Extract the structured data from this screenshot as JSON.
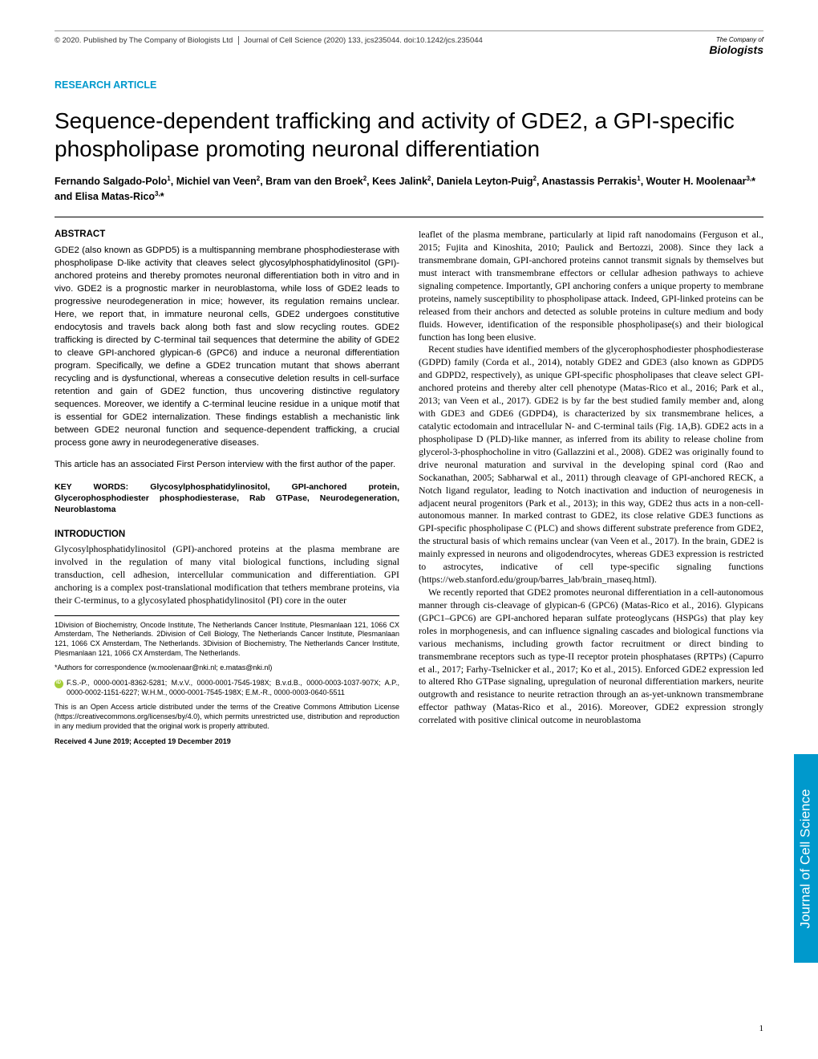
{
  "header": {
    "copyright": "© 2020. Published by The Company of Biologists Ltd",
    "journal": "Journal of Cell Science (2020) 133, jcs235044. doi:10.1242/jcs.235044",
    "logo_prefix": "The Company of",
    "logo_main": "Biologists"
  },
  "article_type": "RESEARCH ARTICLE",
  "title": "Sequence-dependent trafficking and activity of GDE2, a GPI-specific phospholipase promoting neuronal differentiation",
  "authors_html": "Fernando Salgado-Polo<sup>1</sup>, Michiel van Veen<sup>2</sup>, Bram van den Broek<sup>2</sup>, Kees Jalink<sup>2</sup>, Daniela Leyton-Puig<sup>2</sup>, Anastassis Perrakis<sup>1</sup>, Wouter H. Moolenaar<sup>3,</sup>* and Elisa Matas-Rico<sup>3,</sup>*",
  "abstract_head": "ABSTRACT",
  "abstract_text": "GDE2 (also known as GDPD5) is a multispanning membrane phosphodiesterase with phospholipase D-like activity that cleaves select glycosylphosphatidylinositol (GPI)-anchored proteins and thereby promotes neuronal differentiation both in vitro and in vivo. GDE2 is a prognostic marker in neuroblastoma, while loss of GDE2 leads to progressive neurodegeneration in mice; however, its regulation remains unclear. Here, we report that, in immature neuronal cells, GDE2 undergoes constitutive endocytosis and travels back along both fast and slow recycling routes. GDE2 trafficking is directed by C-terminal tail sequences that determine the ability of GDE2 to cleave GPI-anchored glypican-6 (GPC6) and induce a neuronal differentiation program. Specifically, we define a GDE2 truncation mutant that shows aberrant recycling and is dysfunctional, whereas a consecutive deletion results in cell-surface retention and gain of GDE2 function, thus uncovering distinctive regulatory sequences. Moreover, we identify a C-terminal leucine residue in a unique motif that is essential for GDE2 internalization. These findings establish a mechanistic link between GDE2 neuronal function and sequence-dependent trafficking, a crucial process gone awry in neurodegenerative diseases.",
  "first_person": "This article has an associated First Person interview with the first author of the paper.",
  "keywords": "KEY WORDS: Glycosylphosphatidylinositol, GPI-anchored protein, Glycerophosphodiester phosphodiesterase, Rab GTPase, Neurodegeneration, Neuroblastoma",
  "intro_head": "INTRODUCTION",
  "intro_p1": "Glycosylphosphatidylinositol (GPI)-anchored proteins at the plasma membrane are involved in the regulation of many vital biological functions, including signal transduction, cell adhesion, intercellular communication and differentiation. GPI anchoring is a complex post-translational modification that tethers membrane proteins, via their C-terminus, to a glycosylated phosphatidylinositol (PI) core in the outer",
  "affil": {
    "a1": "1Division of Biochemistry, Oncode Institute, The Netherlands Cancer Institute, Plesmanlaan 121, 1066 CX Amsterdam, The Netherlands. 2Division of Cell Biology, The Netherlands Cancer Institute, Plesmanlaan 121, 1066 CX Amsterdam, The Netherlands. 3Division of Biochemistry, The Netherlands Cancer Institute, Plesmanlaan 121, 1066 CX Amsterdam, The Netherlands.",
    "corr": "*Authors for correspondence (w.moolenaar@nki.nl; e.matas@nki.nl)",
    "orcid": "F.S.-P., 0000-0001-8362-5281; M.v.V., 0000-0001-7545-198X; B.v.d.B., 0000-0003-1037-907X; A.P., 0000-0002-1151-6227; W.H.M., 0000-0001-7545-198X; E.M.-R., 0000-0003-0640-5511",
    "license": "This is an Open Access article distributed under the terms of the Creative Commons Attribution License (https://creativecommons.org/licenses/by/4.0), which permits unrestricted use, distribution and reproduction in any medium provided that the original work is properly attributed.",
    "received": "Received 4 June 2019; Accepted 19 December 2019"
  },
  "col2_p1": "leaflet of the plasma membrane, particularly at lipid raft nanodomains (Ferguson et al., 2015; Fujita and Kinoshita, 2010; Paulick and Bertozzi, 2008). Since they lack a transmembrane domain, GPI-anchored proteins cannot transmit signals by themselves but must interact with transmembrane effectors or cellular adhesion pathways to achieve signaling competence. Importantly, GPI anchoring confers a unique property to membrane proteins, namely susceptibility to phospholipase attack. Indeed, GPI-linked proteins can be released from their anchors and detected as soluble proteins in culture medium and body fluids. However, identification of the responsible phospholipase(s) and their biological function has long been elusive.",
  "col2_p2": "Recent studies have identified members of the glycerophosphodiester phosphodiesterase (GDPD) family (Corda et al., 2014), notably GDE2 and GDE3 (also known as GDPD5 and GDPD2, respectively), as unique GPI-specific phospholipases that cleave select GPI-anchored proteins and thereby alter cell phenotype (Matas-Rico et al., 2016; Park et al., 2013; van Veen et al., 2017). GDE2 is by far the best studied family member and, along with GDE3 and GDE6 (GDPD4), is characterized by six transmembrane helices, a catalytic ectodomain and intracellular N- and C-terminal tails (Fig. 1A,B). GDE2 acts in a phospholipase D (PLD)-like manner, as inferred from its ability to release choline from glycerol-3-phosphocholine in vitro (Gallazzini et al., 2008). GDE2 was originally found to drive neuronal maturation and survival in the developing spinal cord (Rao and Sockanathan, 2005; Sabharwal et al., 2011) through cleavage of GPI-anchored RECK, a Notch ligand regulator, leading to Notch inactivation and induction of neurogenesis in adjacent neural progenitors (Park et al., 2013); in this way, GDE2 thus acts in a non-cell-autonomous manner. In marked contrast to GDE2, its close relative GDE3 functions as GPI-specific phospholipase C (PLC) and shows different substrate preference from GDE2, the structural basis of which remains unclear (van Veen et al., 2017). In the brain, GDE2 is mainly expressed in neurons and oligodendrocytes, whereas GDE3 expression is restricted to astrocytes, indicative of cell type-specific signaling functions (https://web.stanford.edu/group/barres_lab/brain_rnaseq.html).",
  "col2_p3": "We recently reported that GDE2 promotes neuronal differentiation in a cell-autonomous manner through cis-cleavage of glypican-6 (GPC6) (Matas-Rico et al., 2016). Glypicans (GPC1–GPC6) are GPI-anchored heparan sulfate proteoglycans (HSPGs) that play key roles in morphogenesis, and can influence signaling cascades and biological functions via various mechanisms, including growth factor recruitment or direct binding to transmembrane receptors such as type-II receptor protein phosphatases (RPTPs) (Capurro et al., 2017; Farhy-Tselnicker et al., 2017; Ko et al., 2015). Enforced GDE2 expression led to altered Rho GTPase signaling, upregulation of neuronal differentiation markers, neurite outgrowth and resistance to neurite retraction through an as-yet-unknown transmembrane effector pathway (Matas-Rico et al., 2016). Moreover, GDE2 expression strongly correlated with positive clinical outcome in neuroblastoma",
  "sidebar": "Journal of Cell Science",
  "page_num": "1"
}
